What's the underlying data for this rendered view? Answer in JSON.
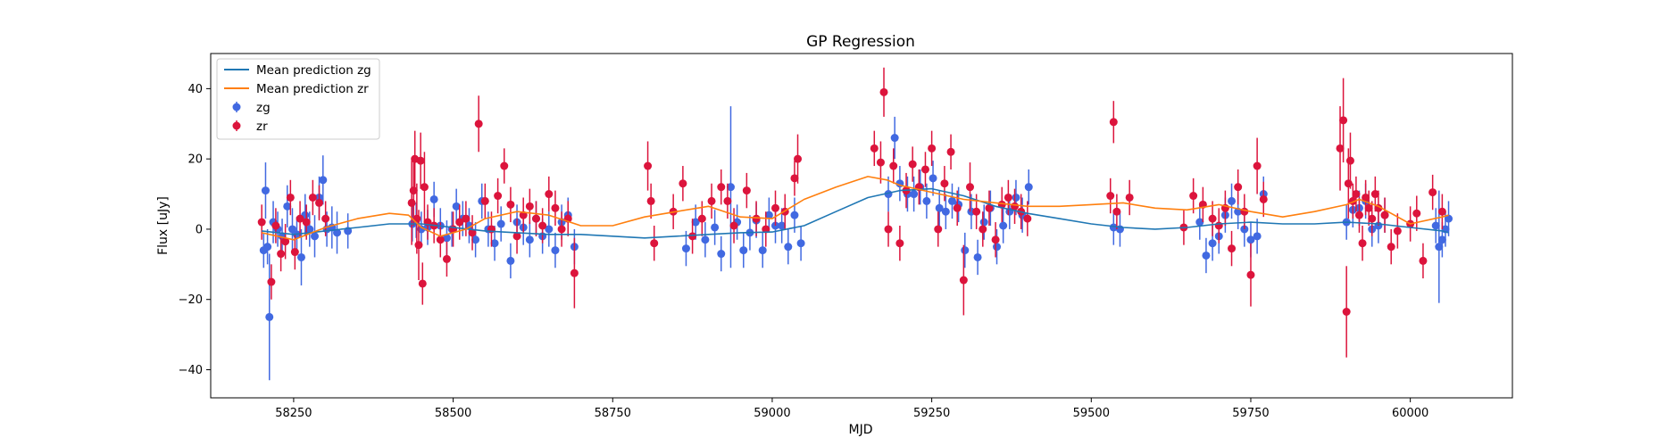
{
  "chart_data": {
    "type": "scatter",
    "title": "GP Regression",
    "xlabel": "MJD",
    "ylabel": "Flux [uJy]",
    "xlim": [
      58120,
      60160
    ],
    "ylim": [
      -48,
      50
    ],
    "xticks": [
      58250,
      58500,
      58750,
      59000,
      59250,
      59500,
      59750,
      60000
    ],
    "yticks": [
      -40,
      -20,
      0,
      20,
      40
    ],
    "grid": false,
    "legend_position": "upper-left",
    "legend": [
      "Mean prediction zg",
      "Mean prediction zr",
      "zg",
      "zr"
    ],
    "series": [
      {
        "name": "Mean prediction zg",
        "kind": "line",
        "color": "#1f77b4",
        "x": [
          58200,
          58250,
          58300,
          58350,
          58400,
          58450,
          58500,
          58550,
          58600,
          58650,
          58700,
          58750,
          58800,
          58850,
          58900,
          58950,
          59000,
          59050,
          59100,
          59150,
          59200,
          59250,
          59300,
          59350,
          59400,
          59450,
          59500,
          59550,
          59600,
          59650,
          59700,
          59750,
          59800,
          59850,
          59900,
          59950,
          60000,
          60050,
          60060
        ],
        "y": [
          -0.5,
          -1.5,
          -0.5,
          0.5,
          1.5,
          1.5,
          0.5,
          -0.5,
          -1.0,
          -1.5,
          -1.5,
          -2.0,
          -2.5,
          -2.0,
          -1.5,
          -1.0,
          -0.8,
          1.0,
          5.0,
          9.0,
          11.0,
          11.5,
          9.5,
          6.5,
          4.5,
          3.0,
          1.5,
          0.5,
          0.0,
          0.5,
          1.5,
          2.0,
          1.5,
          1.5,
          2.0,
          1.5,
          0.5,
          -0.5,
          -1.0
        ]
      },
      {
        "name": "Mean prediction zr",
        "kind": "line",
        "color": "#ff7f0e",
        "x": [
          58200,
          58250,
          58300,
          58350,
          58400,
          58430,
          58450,
          58480,
          58520,
          58550,
          58600,
          58650,
          58700,
          58750,
          58800,
          58850,
          58900,
          58950,
          59000,
          59050,
          59100,
          59150,
          59180,
          59200,
          59250,
          59300,
          59350,
          59400,
          59450,
          59500,
          59550,
          59600,
          59650,
          59700,
          59750,
          59800,
          59850,
          59900,
          59920,
          59950,
          60000,
          60050,
          60060
        ],
        "y": [
          -1.0,
          -3.0,
          0.5,
          3.0,
          4.5,
          4.0,
          0.5,
          -2.0,
          0.0,
          3.0,
          5.0,
          4.0,
          1.0,
          1.0,
          3.5,
          5.0,
          6.5,
          3.5,
          3.0,
          8.5,
          12.0,
          15.0,
          14.0,
          12.5,
          10.5,
          8.5,
          7.5,
          6.5,
          6.5,
          7.0,
          7.5,
          6.0,
          5.5,
          7.0,
          5.0,
          3.5,
          5.0,
          7.0,
          8.5,
          6.5,
          1.5,
          3.5,
          4.0
        ]
      },
      {
        "name": "zg",
        "kind": "errorbar",
        "color": "#4169e1",
        "x": [
          58203,
          58206,
          58209,
          58212,
          58218,
          58225,
          58232,
          58240,
          58248,
          58255,
          58262,
          58268,
          58275,
          58283,
          58290,
          58296,
          58302,
          58310,
          58318,
          58335,
          58436,
          58442,
          58450,
          58460,
          58470,
          58480,
          58490,
          58498,
          58505,
          58515,
          58525,
          58535,
          58545,
          58555,
          58565,
          58575,
          58590,
          58600,
          58610,
          58620,
          58630,
          58640,
          58650,
          58660,
          58670,
          58680,
          58690,
          58865,
          58880,
          58895,
          58910,
          58920,
          58935,
          58945,
          58955,
          58965,
          58975,
          58985,
          58995,
          59005,
          59015,
          59025,
          59035,
          59045,
          59182,
          59192,
          59200,
          59212,
          59222,
          59232,
          59242,
          59252,
          59262,
          59272,
          59282,
          59292,
          59302,
          59312,
          59322,
          59332,
          59342,
          59352,
          59362,
          59372,
          59382,
          59392,
          59402,
          59535,
          59545,
          59670,
          59680,
          59690,
          59700,
          59710,
          59720,
          59730,
          59740,
          59750,
          59760,
          59770,
          59900,
          59910,
          59920,
          59930,
          59940,
          59950,
          59960,
          60040,
          60045,
          60050,
          60055,
          60060
        ],
        "y": [
          -6.0,
          11.0,
          -5.0,
          -25.0,
          2.0,
          0.0,
          -2.0,
          6.5,
          0.0,
          -1.5,
          -8.0,
          4.0,
          0.0,
          -2.0,
          9.0,
          14.0,
          0.0,
          0.5,
          -1.0,
          -0.5,
          1.5,
          2.5,
          0.0,
          0.5,
          8.5,
          1.0,
          -2.5,
          0.0,
          6.5,
          3.0,
          1.0,
          -3.0,
          8.0,
          0.0,
          -4.0,
          1.5,
          -9.0,
          2.0,
          0.5,
          -3.0,
          3.0,
          -2.0,
          0.0,
          -6.0,
          2.0,
          4.0,
          -5.0,
          -5.5,
          2.0,
          -3.0,
          0.5,
          -7.0,
          12.0,
          2.0,
          -6.0,
          -1.0,
          2.5,
          -6.0,
          4.0,
          1.0,
          1.0,
          -5.0,
          4.0,
          -4.0,
          10.0,
          26.0,
          13.0,
          10.0,
          10.0,
          12.0,
          8.0,
          14.5,
          6.0,
          5.0,
          8.0,
          7.0,
          -6.0,
          5.0,
          -8.0,
          2.0,
          6.0,
          -5.0,
          1.0,
          5.0,
          9.0,
          4.0,
          12.0,
          0.5,
          0.0,
          2.0,
          -7.5,
          -4.0,
          -2.0,
          4.0,
          8.0,
          5.0,
          0.0,
          -3.0,
          -2.0,
          10.0,
          2.0,
          5.5,
          6.0,
          8.0,
          0.0,
          1.0,
          4.0,
          1.0,
          -5.0,
          -3.0,
          0.0,
          3.0
        ],
        "err": [
          5,
          8,
          5,
          18,
          6,
          5,
          5,
          6,
          6,
          5,
          8,
          6,
          5,
          6,
          6,
          7,
          5,
          6,
          6,
          5,
          5,
          5,
          5,
          5,
          5,
          5,
          5,
          5,
          5,
          5,
          5,
          5,
          5,
          5,
          5,
          5,
          5,
          5,
          5,
          5,
          5,
          5,
          5,
          5,
          5,
          5,
          5,
          5,
          5,
          5,
          5,
          5,
          23,
          5,
          5,
          5,
          5,
          5,
          5,
          5,
          5,
          5,
          5,
          5,
          5,
          6,
          5,
          5,
          5,
          5,
          5,
          5,
          5,
          5,
          5,
          5,
          5,
          5,
          5,
          5,
          5,
          5,
          5,
          5,
          5,
          5,
          5,
          5,
          5,
          5,
          5,
          5,
          5,
          5,
          5,
          5,
          5,
          5,
          5,
          5,
          5,
          5,
          5,
          5,
          5,
          5,
          5,
          5,
          16,
          5,
          5,
          5
        ]
      },
      {
        "name": "zr",
        "kind": "errorbar",
        "color": "#dc143c",
        "x": [
          58200,
          58215,
          58222,
          58230,
          58237,
          58245,
          58252,
          58260,
          58270,
          58280,
          58290,
          58300,
          58435,
          58438,
          58440,
          58443,
          58446,
          58449,
          58452,
          58455,
          58460,
          58470,
          58480,
          58490,
          58500,
          58510,
          58520,
          58530,
          58540,
          58550,
          58560,
          58570,
          58580,
          58590,
          58600,
          58610,
          58620,
          58630,
          58640,
          58650,
          58660,
          58670,
          58680,
          58690,
          58805,
          58810,
          58815,
          58845,
          58860,
          58875,
          58890,
          58905,
          58920,
          58930,
          58940,
          58960,
          58975,
          58990,
          59005,
          59020,
          59035,
          59040,
          59160,
          59170,
          59175,
          59182,
          59190,
          59200,
          59210,
          59220,
          59230,
          59240,
          59250,
          59260,
          59270,
          59280,
          59290,
          59300,
          59310,
          59320,
          59330,
          59340,
          59350,
          59360,
          59370,
          59380,
          59390,
          59400,
          59530,
          59535,
          59540,
          59560,
          59645,
          59660,
          59675,
          59690,
          59700,
          59710,
          59720,
          59730,
          59740,
          59750,
          59760,
          59770,
          59890,
          59895,
          59900,
          59903,
          59906,
          59910,
          59915,
          59920,
          59925,
          59930,
          59935,
          59940,
          59945,
          59950,
          59960,
          59970,
          59980,
          60000,
          60010,
          60020,
          60035,
          60050
        ],
        "y": [
          2.0,
          -15.0,
          1.0,
          -7.0,
          -3.5,
          9.0,
          -6.5,
          3.0,
          2.0,
          9.0,
          7.5,
          3.0,
          7.5,
          11.0,
          20.0,
          3.0,
          -4.5,
          19.5,
          -15.5,
          12.0,
          2.0,
          1.0,
          -3.0,
          -8.5,
          0.0,
          2.0,
          3.0,
          -1.0,
          30.0,
          8.0,
          0.0,
          9.5,
          18.0,
          7.0,
          -2.0,
          4.0,
          6.5,
          3.0,
          1.0,
          10.0,
          6.0,
          0.0,
          3.0,
          -12.5,
          18.0,
          8.0,
          -4.0,
          5.0,
          13.0,
          -2.0,
          3.0,
          8.0,
          12.0,
          8.0,
          1.0,
          11.0,
          3.0,
          0.0,
          6.0,
          5.0,
          14.5,
          20.0,
          23.0,
          19.0,
          39.0,
          0.0,
          18.0,
          -4.0,
          11.0,
          18.5,
          12.0,
          17.0,
          23.0,
          0.0,
          13.0,
          22.0,
          6.0,
          -14.5,
          12.0,
          5.0,
          0.0,
          6.0,
          -3.0,
          7.0,
          9.0,
          6.5,
          5.0,
          3.0,
          9.5,
          30.5,
          5.0,
          9.0,
          0.5,
          9.5,
          7.0,
          3.0,
          1.0,
          6.0,
          -5.5,
          12.0,
          5.0,
          -13.0,
          18.0,
          8.5,
          23.0,
          31.0,
          -23.5,
          13.0,
          19.5,
          8.0,
          10.0,
          4.0,
          -4.0,
          9.0,
          6.0,
          3.0,
          10.0,
          6.0,
          4.0,
          -5.0,
          -0.5,
          1.5,
          4.5,
          -9.0,
          10.5,
          5.0
        ],
        "err": [
          5,
          5,
          5,
          5,
          5,
          5,
          5,
          5,
          5,
          5,
          5,
          5,
          12,
          10,
          8,
          10,
          10,
          8,
          6,
          10,
          5,
          5,
          5,
          5,
          5,
          5,
          5,
          5,
          8,
          5,
          5,
          5,
          5,
          5,
          5,
          5,
          5,
          5,
          5,
          5,
          5,
          5,
          5,
          10,
          7,
          5,
          5,
          5,
          5,
          5,
          5,
          5,
          5,
          5,
          5,
          5,
          5,
          5,
          5,
          5,
          5,
          7,
          5,
          6,
          7,
          5,
          5,
          5,
          5,
          5,
          5,
          5,
          5,
          5,
          5,
          5,
          5,
          10,
          7,
          5,
          5,
          5,
          5,
          5,
          5,
          5,
          5,
          5,
          5,
          6,
          5,
          5,
          5,
          5,
          5,
          5,
          5,
          5,
          5,
          5,
          5,
          9,
          8,
          5,
          12,
          12,
          13,
          10,
          8,
          5,
          5,
          5,
          5,
          5,
          5,
          5,
          5,
          5,
          5,
          5,
          5,
          5,
          5,
          5,
          5,
          5
        ]
      }
    ]
  }
}
